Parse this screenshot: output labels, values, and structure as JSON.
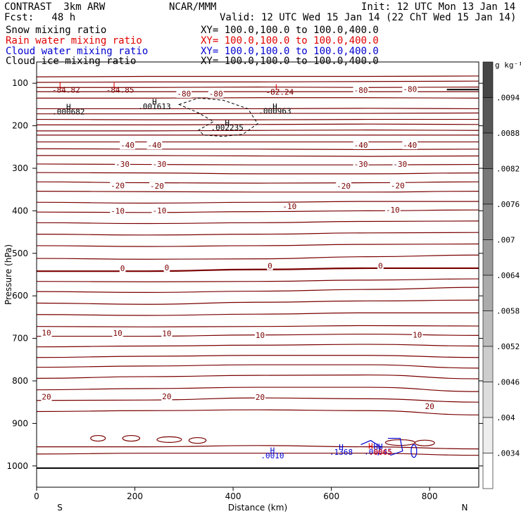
{
  "header": {
    "model": "CONTRAST  3km ARW",
    "center": "NCAR/MMM",
    "init": "Init: 12 UTC Mon 13 Jan 14",
    "fcst": "Fcst:   48 h",
    "valid": "Valid: 12 UTC Wed 15 Jan 14 (22 ChT Wed 15 Jan 14)"
  },
  "legend": [
    {
      "name": "Snow mixing ratio",
      "xy": "XY= 100.0,100.0 to 100.0,400.0",
      "color": "#000000"
    },
    {
      "name": "Rain water mixing ratio",
      "xy": "XY= 100.0,100.0 to 100.0,400.0",
      "color": "#e00000"
    },
    {
      "name": "Cloud water mixing ratio",
      "xy": "XY= 100.0,100.0 to 100.0,400.0",
      "color": "#0000d0"
    },
    {
      "name": "Cloud ice mixing ratio",
      "xy": "XY= 100.0,100.0 to 100.0,400.0",
      "color": "#000000"
    }
  ],
  "colors": {
    "temperature": "#7a0000",
    "zero_isotherm": "#7a0000",
    "cloud_water": "#0000d0",
    "rain": "#e00000",
    "snow": "#000000"
  },
  "chart_data": {
    "type": "contour",
    "xlabel": "Distance (km)",
    "ylabel": "Pressure (hPa)",
    "xlim": [
      0,
      900
    ],
    "ylim": [
      1050,
      50
    ],
    "x_ticks": [
      0,
      200,
      400,
      600,
      800
    ],
    "y_ticks": [
      100,
      200,
      300,
      400,
      500,
      600,
      700,
      800,
      900,
      1000
    ],
    "end_labels": {
      "left": "S",
      "right": "N"
    },
    "isotherms": [
      {
        "p": [
          85,
          84,
          84,
          84,
          83
        ],
        "label": ""
      },
      {
        "p": [
          98,
          97,
          97,
          96,
          95
        ],
        "label": ""
      },
      {
        "p": [
          110,
          110,
          109,
          110,
          109
        ],
        "label": "-80"
      },
      {
        "p": [
          120,
          120,
          120,
          120,
          120
        ],
        "label": "-80"
      },
      {
        "p": [
          135,
          135,
          134,
          134,
          135
        ],
        "label": ""
      },
      {
        "p": [
          160,
          160,
          160,
          159,
          160
        ],
        "label": ""
      },
      {
        "p": [
          172,
          172,
          171,
          171,
          170
        ],
        "label": ""
      },
      {
        "p": [
          185,
          186,
          186,
          185,
          185
        ],
        "label": ""
      },
      {
        "p": [
          198,
          198,
          197,
          196,
          197
        ],
        "label": ""
      },
      {
        "p": [
          212,
          212,
          211,
          210,
          211
        ],
        "label": "-40"
      },
      {
        "p": [
          222,
          222,
          222,
          222,
          222
        ],
        "label": ""
      },
      {
        "p": [
          238,
          238,
          238,
          238,
          238
        ],
        "label": ""
      },
      {
        "p": [
          254,
          255,
          255,
          256,
          255
        ],
        "label": "-30"
      },
      {
        "p": [
          270,
          270,
          271,
          272,
          271
        ],
        "label": ""
      },
      {
        "p": [
          290,
          291,
          292,
          292,
          291
        ],
        "label": "-20"
      },
      {
        "p": [
          310,
          311,
          313,
          313,
          311
        ],
        "label": ""
      },
      {
        "p": [
          332,
          334,
          335,
          334,
          332
        ],
        "label": ""
      },
      {
        "p": [
          354,
          355,
          356,
          356,
          354
        ],
        "label": ""
      },
      {
        "p": [
          380,
          382,
          380,
          378,
          378
        ],
        "label": "-10"
      },
      {
        "p": [
          403,
          404,
          402,
          400,
          398
        ],
        "label": ""
      },
      {
        "p": [
          428,
          430,
          428,
          425,
          424
        ],
        "label": ""
      },
      {
        "p": [
          455,
          457,
          455,
          452,
          451
        ],
        "label": ""
      },
      {
        "p": [
          482,
          484,
          482,
          479,
          478
        ],
        "label": ""
      },
      {
        "p": [
          512,
          514,
          513,
          508,
          504
        ],
        "label": ""
      },
      {
        "p": [
          542,
          542,
          538,
          535,
          535
        ],
        "label": "0"
      },
      {
        "p": [
          566,
          567,
          566,
          563,
          560
        ],
        "label": ""
      },
      {
        "p": [
          590,
          592,
          589,
          585,
          580
        ],
        "label": ""
      },
      {
        "p": [
          617,
          620,
          615,
          612,
          610
        ],
        "label": ""
      },
      {
        "p": [
          644,
          646,
          643,
          640,
          640
        ],
        "label": ""
      },
      {
        "p": [
          672,
          673,
          672,
          670,
          671
        ],
        "label": ""
      },
      {
        "p": [
          695,
          695,
          692,
          690,
          693
        ],
        "label": "10"
      },
      {
        "p": [
          720,
          718,
          716,
          714,
          718
        ],
        "label": ""
      },
      {
        "p": [
          745,
          742,
          740,
          740,
          745
        ],
        "label": ""
      },
      {
        "p": [
          768,
          765,
          762,
          762,
          770
        ],
        "label": ""
      },
      {
        "p": [
          794,
          790,
          787,
          786,
          795
        ],
        "label": ""
      },
      {
        "p": [
          821,
          818,
          815,
          815,
          825
        ],
        "label": ""
      },
      {
        "p": [
          846,
          845,
          840,
          842,
          850
        ],
        "label": "20"
      },
      {
        "p": [
          872,
          870,
          868,
          870,
          880
        ],
        "label": ""
      },
      {
        "p": [
          955,
          955,
          952,
          955,
          960
        ],
        "label": ""
      },
      {
        "p": [
          972,
          970,
          970,
          970,
          975
        ],
        "label": ""
      }
    ],
    "ground_level_hPa": 1005,
    "labels": [
      {
        "text": "L",
        "x": 50,
        "p": 112,
        "color": "rain"
      },
      {
        "text": "-84.82",
        "x": 60,
        "p": 122,
        "color": "temperature"
      },
      {
        "text": "L",
        "x": 160,
        "p": 112,
        "color": "rain"
      },
      {
        "text": "-84.85",
        "x": 170,
        "p": 122,
        "color": "temperature"
      },
      {
        "text": "-80",
        "x": 300,
        "p": 131,
        "color": "temperature"
      },
      {
        "text": "-80",
        "x": 365,
        "p": 131,
        "color": "temperature"
      },
      {
        "text": "L",
        "x": 490,
        "p": 115,
        "color": "rain"
      },
      {
        "text": "-82.24",
        "x": 495,
        "p": 127,
        "color": "temperature"
      },
      {
        "text": "-80",
        "x": 660,
        "p": 123,
        "color": "temperature"
      },
      {
        "text": "-80",
        "x": 760,
        "p": 120,
        "color": "temperature"
      },
      {
        "text": "H",
        "x": 65,
        "p": 162,
        "color": "snow"
      },
      {
        "text": ".000682",
        "x": 65,
        "p": 173,
        "color": "snow"
      },
      {
        "text": "H",
        "x": 240,
        "p": 150,
        "color": "snow"
      },
      {
        "text": ".001613",
        "x": 240,
        "p": 161,
        "color": "snow"
      },
      {
        "text": "H",
        "x": 388,
        "p": 200,
        "color": "snow"
      },
      {
        "text": ".002235",
        "x": 388,
        "p": 211,
        "color": "snow"
      },
      {
        "text": "H",
        "x": 485,
        "p": 161,
        "color": "snow"
      },
      {
        "text": ".000963",
        "x": 485,
        "p": 172,
        "color": "snow"
      },
      {
        "text": "-40",
        "x": 185,
        "p": 252,
        "color": "temperature"
      },
      {
        "text": "-40",
        "x": 240,
        "p": 252,
        "color": "temperature"
      },
      {
        "text": "-40",
        "x": 660,
        "p": 252,
        "color": "temperature"
      },
      {
        "text": "-40",
        "x": 760,
        "p": 252,
        "color": "temperature"
      },
      {
        "text": "-30",
        "x": 175,
        "p": 297,
        "color": "temperature"
      },
      {
        "text": "-30",
        "x": 250,
        "p": 297,
        "color": "temperature"
      },
      {
        "text": "-30",
        "x": 660,
        "p": 297,
        "color": "temperature"
      },
      {
        "text": "-30",
        "x": 740,
        "p": 297,
        "color": "temperature"
      },
      {
        "text": "-20",
        "x": 165,
        "p": 347,
        "color": "temperature"
      },
      {
        "text": "-20",
        "x": 245,
        "p": 348,
        "color": "temperature"
      },
      {
        "text": "-20",
        "x": 625,
        "p": 348,
        "color": "temperature"
      },
      {
        "text": "-20",
        "x": 735,
        "p": 347,
        "color": "temperature"
      },
      {
        "text": "-10",
        "x": 165,
        "p": 407,
        "color": "temperature"
      },
      {
        "text": "-10",
        "x": 250,
        "p": 406,
        "color": "temperature"
      },
      {
        "text": "-10",
        "x": 515,
        "p": 396,
        "color": "temperature"
      },
      {
        "text": "-10",
        "x": 725,
        "p": 404,
        "color": "temperature"
      },
      {
        "text": "0",
        "x": 175,
        "p": 542,
        "color": "temperature"
      },
      {
        "text": "0",
        "x": 265,
        "p": 540,
        "color": "temperature"
      },
      {
        "text": "0",
        "x": 475,
        "p": 536,
        "color": "temperature"
      },
      {
        "text": "0",
        "x": 700,
        "p": 536,
        "color": "temperature"
      },
      {
        "text": "10",
        "x": 20,
        "p": 693,
        "color": "temperature"
      },
      {
        "text": "10",
        "x": 165,
        "p": 694,
        "color": "temperature"
      },
      {
        "text": "10",
        "x": 265,
        "p": 695,
        "color": "temperature"
      },
      {
        "text": "10",
        "x": 455,
        "p": 699,
        "color": "temperature"
      },
      {
        "text": "10",
        "x": 775,
        "p": 698,
        "color": "temperature"
      },
      {
        "text": "20",
        "x": 20,
        "p": 844,
        "color": "temperature"
      },
      {
        "text": "20",
        "x": 265,
        "p": 843,
        "color": "temperature"
      },
      {
        "text": "20",
        "x": 455,
        "p": 845,
        "color": "temperature"
      },
      {
        "text": "20",
        "x": 800,
        "p": 866,
        "color": "temperature"
      },
      {
        "text": "H",
        "x": 480,
        "p": 970,
        "color": "cloud_water"
      },
      {
        "text": ".0010",
        "x": 480,
        "p": 982,
        "color": "cloud_water"
      },
      {
        "text": "H",
        "x": 620,
        "p": 962,
        "color": "cloud_water"
      },
      {
        "text": ".1368",
        "x": 620,
        "p": 974,
        "color": "cloud_water"
      },
      {
        "text": "HH",
        "x": 695,
        "p": 961,
        "color": "cloud_water"
      },
      {
        "text": ".00045",
        "x": 695,
        "p": 973,
        "color": "cloud_water"
      },
      {
        "text": "H",
        "x": 680,
        "p": 960,
        "color": "rain"
      },
      {
        "text": ".0065",
        "x": 700,
        "p": 974,
        "color": "rain"
      }
    ],
    "colorbar": {
      "units": "g kg⁻¹",
      "ticks": [
        ".0094",
        ".0088",
        ".0082",
        ".0076",
        ".007",
        ".0064",
        ".0058",
        ".0052",
        ".0046",
        ".004",
        ".0034"
      ]
    }
  }
}
